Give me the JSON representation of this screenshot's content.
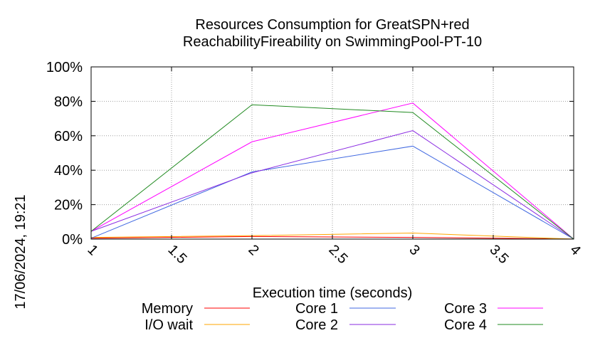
{
  "chart_data": {
    "type": "line",
    "title": [
      "Resources Consumption for GreatSPN+red",
      "ReachabilityFireability on SwimmingPool-PT-10"
    ],
    "xlabel": "Execution time (seconds)",
    "ylabel": "",
    "side_label": "17/06/2024, 19:21",
    "x": [
      1,
      2,
      3,
      4
    ],
    "xlim": [
      1,
      4
    ],
    "ylim": [
      0,
      100
    ],
    "xticks": [
      "1",
      "1.5",
      "2",
      "2.5",
      "3",
      "3.5",
      "4"
    ],
    "xtick_values": [
      1,
      1.5,
      2,
      2.5,
      3,
      3.5,
      4
    ],
    "yticks": [
      "0%",
      "20%",
      "40%",
      "60%",
      "80%",
      "100%"
    ],
    "ytick_values": [
      0,
      20,
      40,
      60,
      80,
      100
    ],
    "grid": true,
    "legend_position": "bottom",
    "series": [
      {
        "name": "Memory",
        "color": "#ff0000",
        "values": [
          0.5,
          1.5,
          1.0,
          0.0
        ]
      },
      {
        "name": "I/O wait",
        "color": "#ffa500",
        "values": [
          1.0,
          2.0,
          3.5,
          0.0
        ]
      },
      {
        "name": "Core 1",
        "color": "#4169e1",
        "values": [
          0.5,
          39,
          54,
          0.0
        ]
      },
      {
        "name": "Core 2",
        "color": "#8a2be2",
        "values": [
          4.5,
          38.5,
          63,
          0.0
        ]
      },
      {
        "name": "Core 3",
        "color": "#ff00ff",
        "values": [
          4.5,
          56.5,
          79,
          0.0
        ]
      },
      {
        "name": "Core 4",
        "color": "#228b22",
        "values": [
          4.5,
          78,
          73.5,
          0.0
        ]
      }
    ]
  }
}
